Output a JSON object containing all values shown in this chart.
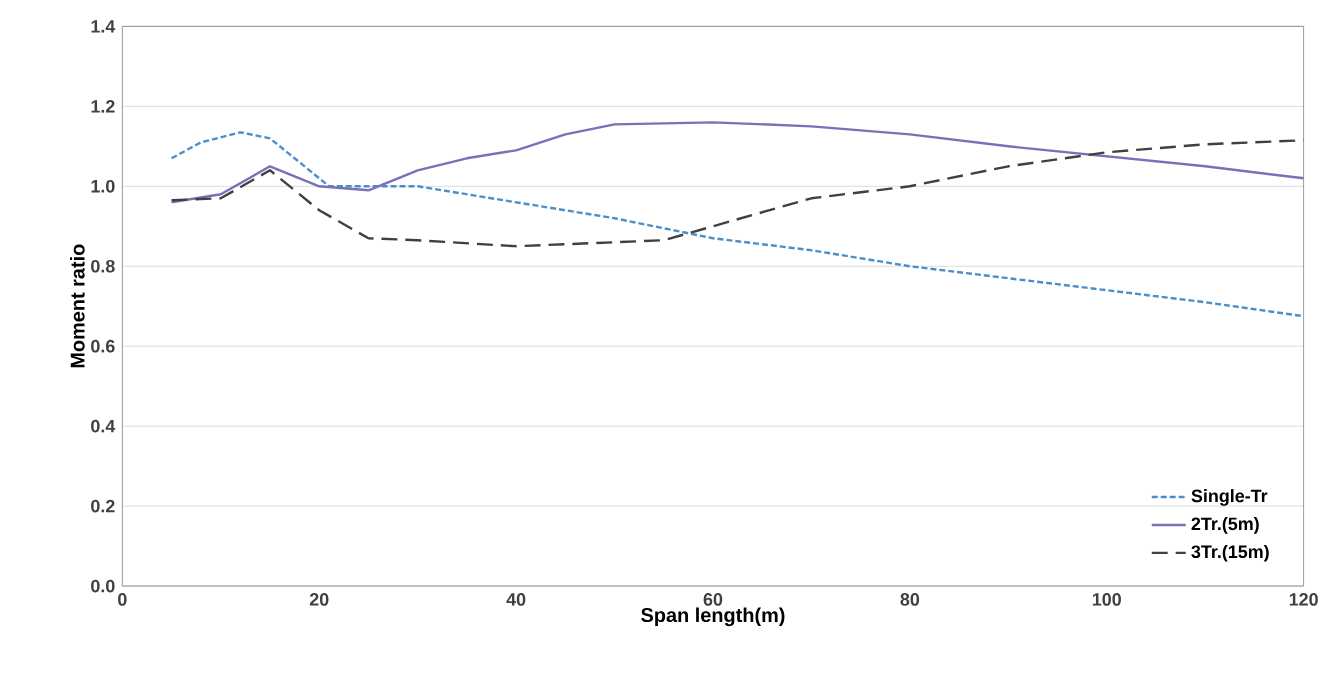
{
  "chart_data": {
    "type": "line",
    "xlabel": "Span length(m)",
    "ylabel": "Moment ratio",
    "xlim": [
      0,
      120
    ],
    "xticks": [
      0,
      20,
      40,
      60,
      80,
      100,
      120
    ],
    "ylim": [
      0,
      1.4
    ],
    "yticks": [
      {
        "value": 0,
        "label": "0.0"
      },
      0.2,
      0.4,
      0.6,
      0.8,
      {
        "value": 1,
        "label": "1.0"
      },
      1.2,
      1.4
    ],
    "grid": "y",
    "legend": "bottom right",
    "marker": "none",
    "series": [
      {
        "name": "Single-Tr",
        "color": "#4a8fcc",
        "line_style": "dotted",
        "x": [
          5,
          8,
          12,
          15,
          18,
          21,
          25,
          30,
          40,
          50,
          60,
          70,
          80,
          90,
          100,
          110,
          120
        ],
        "values": [
          1.07,
          1.11,
          1.135,
          1.12,
          1.06,
          1.0,
          1.0,
          1.0,
          0.96,
          0.92,
          0.87,
          0.84,
          0.8,
          0.77,
          0.74,
          0.71,
          0.675
        ]
      },
      {
        "name": "2Tr.(5m)",
        "color": "#7b6fb8",
        "line_style": "solid",
        "x": [
          5,
          10,
          15,
          20,
          25,
          30,
          35,
          40,
          45,
          50,
          60,
          70,
          80,
          90,
          100,
          110,
          120
        ],
        "values": [
          0.96,
          0.98,
          1.05,
          1.0,
          0.99,
          1.04,
          1.07,
          1.09,
          1.13,
          1.155,
          1.16,
          1.15,
          1.13,
          1.1,
          1.075,
          1.05,
          1.02
        ]
      },
      {
        "name": "3Tr.(15m)",
        "color": "#404040",
        "line_style": "dashed",
        "x": [
          5,
          10,
          15,
          20,
          25,
          30,
          40,
          50,
          55,
          60,
          70,
          80,
          90,
          100,
          110,
          120
        ],
        "values": [
          0.965,
          0.97,
          1.04,
          0.94,
          0.87,
          0.865,
          0.85,
          0.86,
          0.865,
          0.9,
          0.97,
          1.0,
          1.05,
          1.085,
          1.105,
          1.115
        ]
      }
    ]
  }
}
